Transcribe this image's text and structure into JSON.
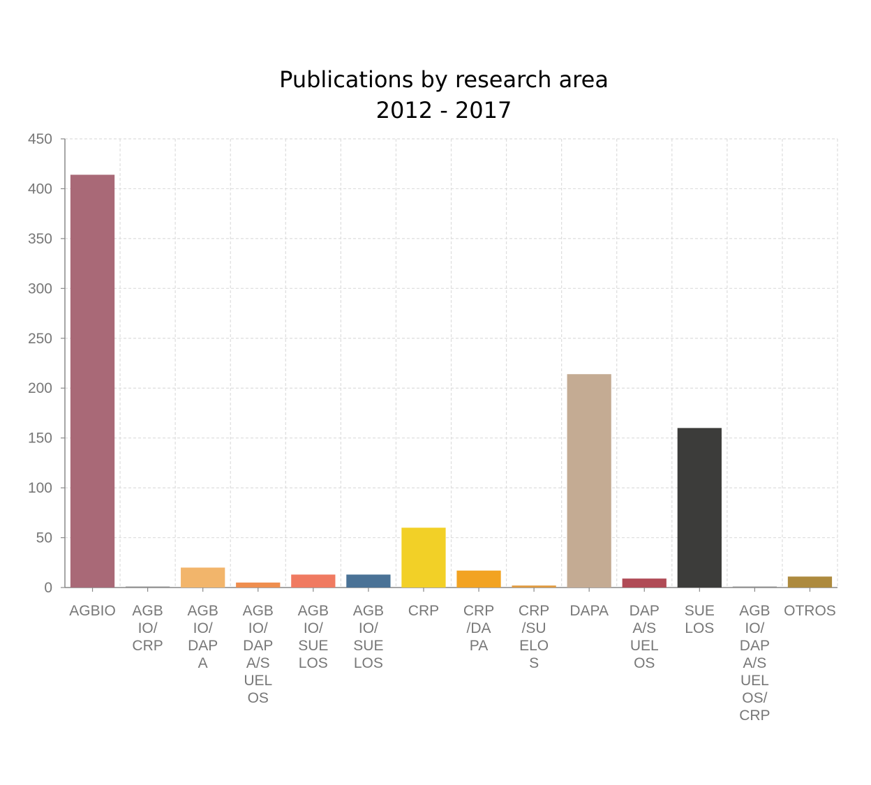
{
  "chart_data": {
    "type": "bar",
    "title": "Publications by research area",
    "subtitle": "2012 - 2017",
    "xlabel": "",
    "ylabel": "",
    "ylim": [
      0,
      450
    ],
    "yticks": [
      0,
      50,
      100,
      150,
      200,
      250,
      300,
      350,
      400,
      450
    ],
    "grid": true,
    "categories": [
      "AGBIO",
      "AGBIO/CRP",
      "AGBIO/DAPA",
      "AGBIO/DAPA/SUELOS",
      "AGBIO/SUELOS",
      "AGBIO/SUELOS",
      "CRP",
      "CRP/DAPA",
      "CRP/SUELOS",
      "DAPA",
      "DAPA/SUELOS",
      "SUELOS",
      "AGBIO/DAPA/SUELOS/CRP",
      "OTROS"
    ],
    "category_label_lines": [
      [
        "AGBIO"
      ],
      [
        "AGB",
        "IO/",
        "CRP"
      ],
      [
        "AGB",
        "IO/",
        "DAP",
        "A"
      ],
      [
        "AGB",
        "IO/",
        "DAP",
        "A/S",
        "UEL",
        "OS"
      ],
      [
        "AGB",
        "IO/",
        "SUE",
        "LOS"
      ],
      [
        "AGB",
        "IO/",
        "SUE",
        "LOS"
      ],
      [
        "CRP"
      ],
      [
        "CRP",
        "/DA",
        "PA"
      ],
      [
        "CRP",
        "/SU",
        "ELO",
        "S"
      ],
      [
        "DAPA"
      ],
      [
        "DAP",
        "A/S",
        "UEL",
        "OS"
      ],
      [
        "SUE",
        "LOS"
      ],
      [
        "AGB",
        "IO/",
        "DAP",
        "A/S",
        "UEL",
        "OS/",
        "CRP"
      ],
      [
        "OTROS"
      ]
    ],
    "values": [
      414,
      1,
      20,
      5,
      13,
      13,
      60,
      17,
      2,
      214,
      9,
      160,
      1,
      11
    ],
    "colors": [
      "#a96977",
      "#8f8f8f",
      "#f2b56b",
      "#ef8e4f",
      "#f07a61",
      "#4a7296",
      "#f2d027",
      "#f2a322",
      "#e09b41",
      "#c4ab93",
      "#b04b56",
      "#3c3c3a",
      "#8f8f8f",
      "#ad8a3e"
    ]
  }
}
